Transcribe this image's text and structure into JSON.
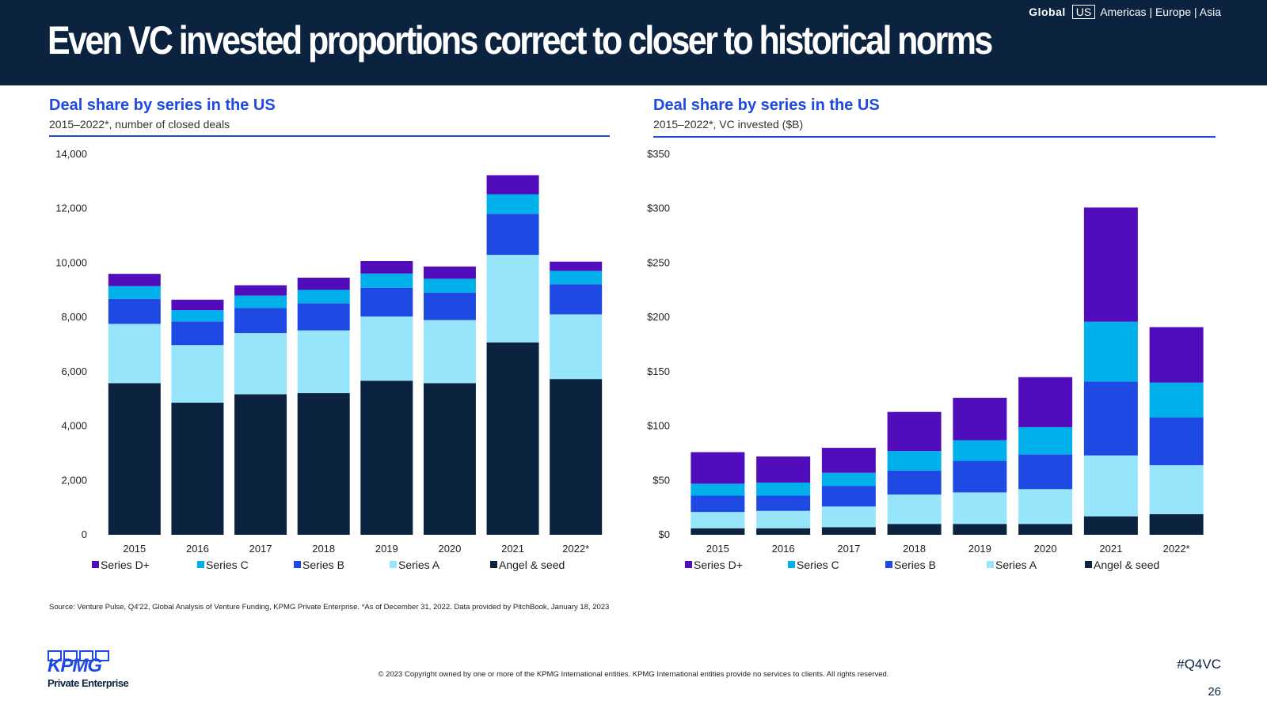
{
  "page": {
    "title": "Even VC invested proportions correct to closer to historical norms",
    "nav": {
      "global": "Global",
      "us": "US",
      "others": "Americas | Europe | Asia"
    },
    "source": "Source: Venture Pulse, Q4'22, Global Analysis of Venture Funding, KPMG Private Enterprise. *As of December 31, 2022. Data provided by PitchBook, January 18, 2023",
    "copyright": "© 2023 Copyright owned by one or more of the KPMG International entities. KPMG International entities provide no services to clients. All rights reserved.",
    "hashtag": "#Q4VC",
    "page_number": "26",
    "logo": {
      "word": "KPMG",
      "sub": "Private Enterprise"
    }
  },
  "colors": {
    "header_bg": "#0c2340",
    "accent": "#1e49e2",
    "Angel & seed": "#0c2340",
    "Series A": "#97e5fb",
    "Series B": "#1e49e2",
    "Series C": "#00b0ea",
    "Series D+": "#510dbc"
  },
  "chart_data": [
    {
      "id": "left",
      "type": "bar",
      "stacked": true,
      "title": "Deal share by series in the US",
      "subtitle": "2015–2022*, number of closed deals",
      "categories": [
        "2015",
        "2016",
        "2017",
        "2018",
        "2019",
        "2020",
        "2021",
        "2022*"
      ],
      "ylim": [
        0,
        14000
      ],
      "yticks": [
        0,
        2000,
        4000,
        6000,
        8000,
        10000,
        12000,
        14000
      ],
      "ytick_labels": [
        "0",
        "2,000",
        "4,000",
        "6,000",
        "8,000",
        "10,000",
        "12,000",
        "14,000"
      ],
      "legend_order": [
        "Series D+",
        "Series C",
        "Series B",
        "Series A",
        "Angel & seed"
      ],
      "series": [
        {
          "name": "Angel & seed",
          "values": [
            5580,
            4860,
            5170,
            5210,
            5670,
            5580,
            7080,
            5730
          ]
        },
        {
          "name": "Series A",
          "values": [
            2180,
            2120,
            2250,
            2310,
            2360,
            2320,
            3220,
            2380
          ]
        },
        {
          "name": "Series B",
          "values": [
            920,
            870,
            920,
            1000,
            1060,
            1010,
            1510,
            1110
          ]
        },
        {
          "name": "Series C",
          "values": [
            470,
            410,
            460,
            490,
            520,
            510,
            720,
            490
          ]
        },
        {
          "name": "Series D+",
          "values": [
            450,
            390,
            380,
            450,
            460,
            450,
            700,
            340
          ]
        }
      ],
      "grid": false,
      "legend_position": "bottom"
    },
    {
      "id": "right",
      "type": "bar",
      "stacked": true,
      "title": "Deal share by series in the US",
      "subtitle": "2015–2022*, VC invested ($B)",
      "categories": [
        "2015",
        "2016",
        "2017",
        "2018",
        "2019",
        "2020",
        "2021",
        "2022*"
      ],
      "ylim": [
        0,
        350
      ],
      "yticks": [
        0,
        50,
        100,
        150,
        200,
        250,
        300,
        350
      ],
      "ytick_labels": [
        "$0",
        "$50",
        "$100",
        "$150",
        "$200",
        "$250",
        "$300",
        "$350"
      ],
      "legend_order": [
        "Series D+",
        "Series C",
        "Series B",
        "Series A",
        "Angel & seed"
      ],
      "series": [
        {
          "name": "Angel & seed",
          "values": [
            6,
            6,
            7,
            10,
            10,
            10,
            17,
            19
          ]
        },
        {
          "name": "Series A",
          "values": [
            15,
            16,
            19,
            27,
            29,
            32,
            56,
            45
          ]
        },
        {
          "name": "Series B",
          "values": [
            15,
            14,
            19,
            22,
            29,
            32,
            68,
            44
          ]
        },
        {
          "name": "Series C",
          "values": [
            11,
            12,
            12,
            18,
            19,
            25,
            55,
            32
          ]
        },
        {
          "name": "Series D+",
          "values": [
            29,
            24,
            23,
            36,
            39,
            46,
            105,
            51
          ]
        }
      ],
      "grid": false,
      "legend_position": "bottom"
    }
  ]
}
